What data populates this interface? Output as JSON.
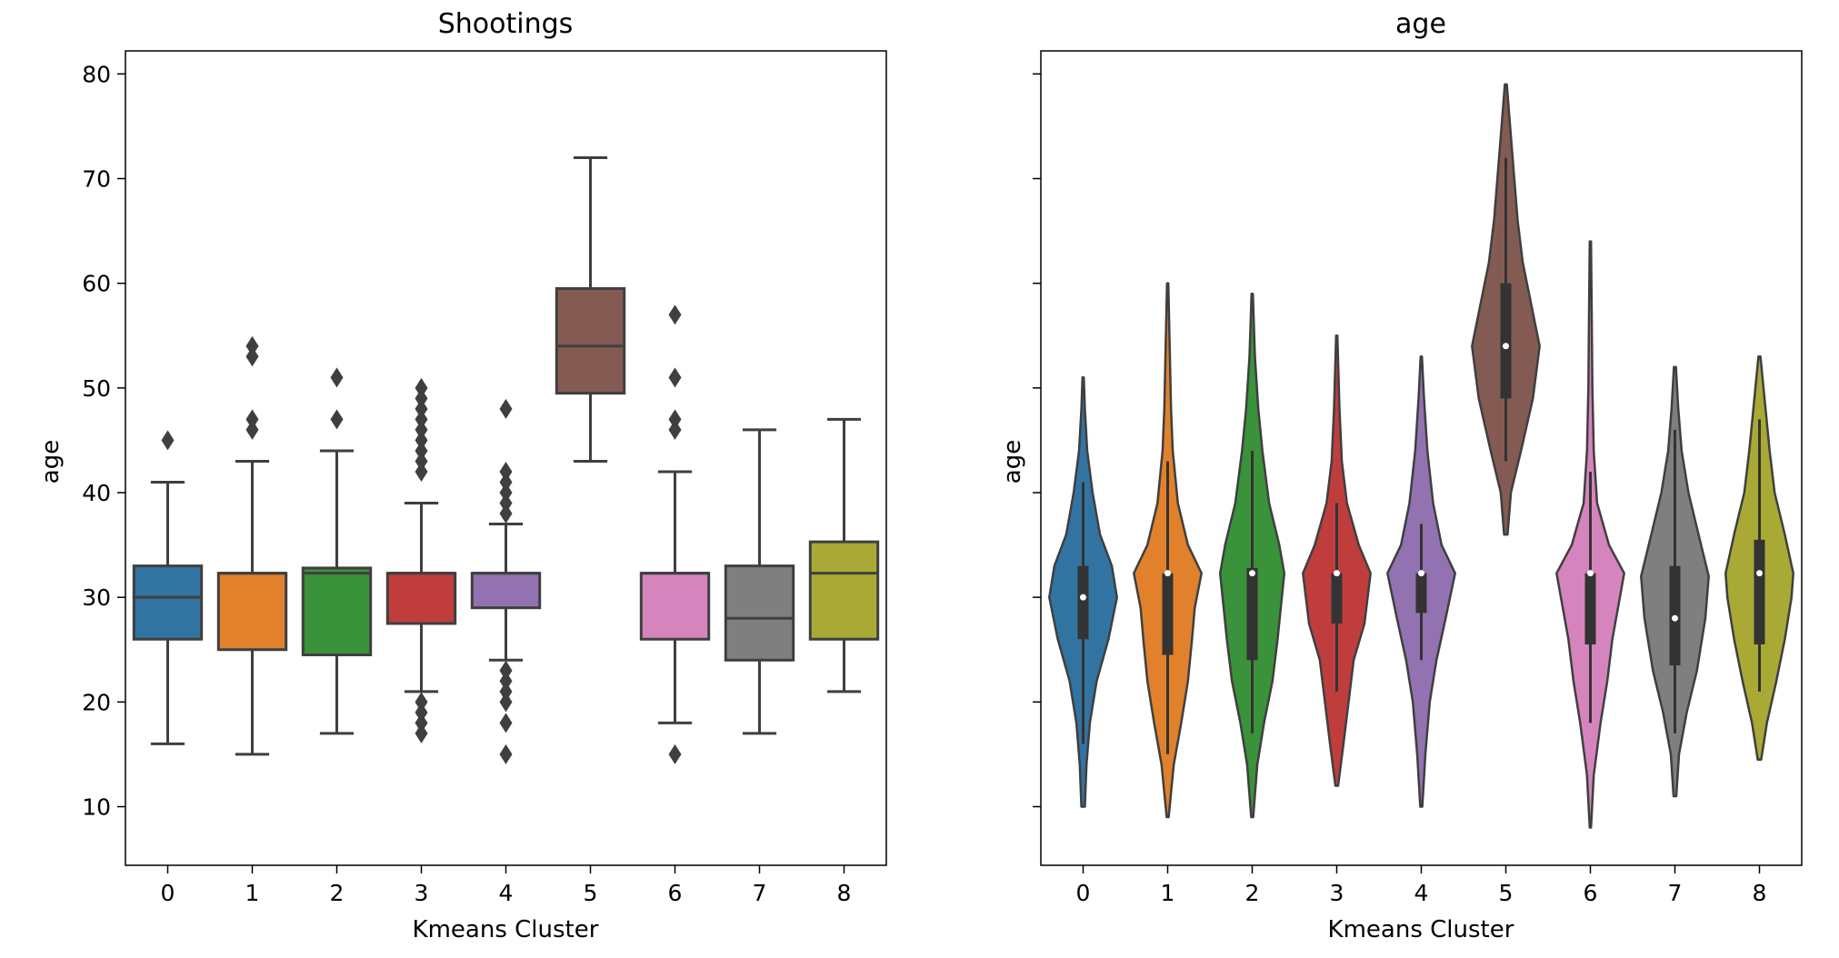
{
  "chart_data": [
    {
      "type": "box",
      "title": "Shootings",
      "xlabel": "Kmeans Cluster",
      "ylabel": "age",
      "categories": [
        "0",
        "1",
        "2",
        "3",
        "4",
        "5",
        "6",
        "7",
        "8"
      ],
      "yticks": [
        10,
        20,
        30,
        40,
        50,
        60,
        70,
        80
      ],
      "ylim": [
        4.4,
        82.2
      ],
      "grid": false,
      "colors": [
        "#3274a1",
        "#e1812c",
        "#3a923a",
        "#c03d3e",
        "#9372b2",
        "#845b53",
        "#d684bd",
        "#7f7f7f",
        "#a9aa35"
      ],
      "boxes": [
        {
          "whisker_low": 16,
          "q1": 26,
          "median": 30,
          "q3": 33,
          "whisker_high": 41,
          "outliers": [
            45
          ]
        },
        {
          "whisker_low": 15,
          "q1": 25,
          "median": 32.3,
          "q3": 32.3,
          "whisker_high": 43,
          "outliers": [
            46,
            47,
            53,
            54
          ]
        },
        {
          "whisker_low": 17,
          "q1": 24.5,
          "median": 32.3,
          "q3": 32.8,
          "whisker_high": 44,
          "outliers": [
            47,
            51
          ]
        },
        {
          "whisker_low": 21,
          "q1": 27.5,
          "median": 32.3,
          "q3": 32.3,
          "whisker_high": 39,
          "outliers": [
            17,
            18,
            19,
            20,
            42,
            43,
            44,
            45,
            46,
            47,
            48,
            49,
            50
          ]
        },
        {
          "whisker_low": 24,
          "q1": 29,
          "median": 32.3,
          "q3": 32.3,
          "whisker_high": 37,
          "outliers": [
            15,
            18,
            20,
            21,
            22,
            23,
            38,
            39,
            40,
            41,
            42,
            48
          ]
        },
        {
          "whisker_low": 43,
          "q1": 49.5,
          "median": 54,
          "q3": 59.5,
          "whisker_high": 72,
          "outliers": []
        },
        {
          "whisker_low": 18,
          "q1": 26,
          "median": 32.3,
          "q3": 32.3,
          "whisker_high": 42,
          "outliers": [
            15,
            46,
            47,
            51,
            57
          ]
        },
        {
          "whisker_low": 17,
          "q1": 24,
          "median": 28,
          "q3": 33,
          "whisker_high": 46,
          "outliers": []
        },
        {
          "whisker_low": 21,
          "q1": 26,
          "median": 32.3,
          "q3": 35.3,
          "whisker_high": 47,
          "outliers": []
        }
      ]
    },
    {
      "type": "violin",
      "title": "age",
      "xlabel": "Kmeans Cluster",
      "ylabel": "age",
      "categories": [
        "0",
        "1",
        "2",
        "3",
        "4",
        "5",
        "6",
        "7",
        "8"
      ],
      "ylim": [
        4.4,
        82.2
      ],
      "grid": false,
      "colors": [
        "#3274a1",
        "#e1812c",
        "#3a923a",
        "#c03d3e",
        "#9372b2",
        "#845b53",
        "#d684bd",
        "#7f7f7f",
        "#a9aa35"
      ],
      "violins": [
        {
          "min": 10,
          "max": 51,
          "q1": 26,
          "median": 30,
          "q3": 33,
          "whisker_low": 16,
          "whisker_high": 41,
          "profile": [
            [
              10,
              0.05
            ],
            [
              14,
              0.1
            ],
            [
              18,
              0.2
            ],
            [
              22,
              0.4
            ],
            [
              26,
              0.75
            ],
            [
              30,
              1.0
            ],
            [
              33,
              0.85
            ],
            [
              36,
              0.5
            ],
            [
              40,
              0.28
            ],
            [
              44,
              0.12
            ],
            [
              48,
              0.05
            ],
            [
              51,
              0.02
            ]
          ]
        },
        {
          "min": 9,
          "max": 60,
          "q1": 24.5,
          "median": 32.3,
          "q3": 32.3,
          "whisker_low": 15,
          "whisker_high": 43,
          "profile": [
            [
              9,
              0.03
            ],
            [
              14,
              0.18
            ],
            [
              18,
              0.4
            ],
            [
              22,
              0.6
            ],
            [
              26,
              0.72
            ],
            [
              29,
              0.8
            ],
            [
              32.3,
              1.0
            ],
            [
              35,
              0.6
            ],
            [
              39,
              0.3
            ],
            [
              44,
              0.15
            ],
            [
              48,
              0.1
            ],
            [
              54,
              0.06
            ],
            [
              60,
              0.02
            ]
          ]
        },
        {
          "min": 9,
          "max": 59,
          "q1": 24,
          "median": 32.3,
          "q3": 32.8,
          "whisker_low": 17,
          "whisker_high": 44,
          "profile": [
            [
              9,
              0.03
            ],
            [
              14,
              0.15
            ],
            [
              18,
              0.35
            ],
            [
              22,
              0.6
            ],
            [
              26,
              0.75
            ],
            [
              32.3,
              0.95
            ],
            [
              35,
              0.8
            ],
            [
              39,
              0.5
            ],
            [
              44,
              0.3
            ],
            [
              48,
              0.18
            ],
            [
              53,
              0.08
            ],
            [
              59,
              0.02
            ]
          ]
        },
        {
          "min": 12,
          "max": 55,
          "q1": 27.5,
          "median": 32.3,
          "q3": 32.3,
          "whisker_low": 21,
          "whisker_high": 39,
          "profile": [
            [
              12,
              0.04
            ],
            [
              16,
              0.2
            ],
            [
              20,
              0.35
            ],
            [
              24,
              0.5
            ],
            [
              27.5,
              0.82
            ],
            [
              32.3,
              1.0
            ],
            [
              35,
              0.65
            ],
            [
              39,
              0.3
            ],
            [
              43,
              0.15
            ],
            [
              48,
              0.08
            ],
            [
              55,
              0.02
            ]
          ]
        },
        {
          "min": 10,
          "max": 53,
          "q1": 28.5,
          "median": 32.3,
          "q3": 32.3,
          "whisker_low": 24,
          "whisker_high": 37,
          "profile": [
            [
              10,
              0.03
            ],
            [
              15,
              0.12
            ],
            [
              20,
              0.25
            ],
            [
              24,
              0.45
            ],
            [
              28,
              0.72
            ],
            [
              32.3,
              1.0
            ],
            [
              35,
              0.6
            ],
            [
              39,
              0.35
            ],
            [
              44,
              0.18
            ],
            [
              49,
              0.08
            ],
            [
              53,
              0.02
            ]
          ]
        },
        {
          "min": 36,
          "max": 79,
          "q1": 49,
          "median": 54,
          "q3": 60,
          "whisker_low": 43,
          "whisker_high": 72,
          "profile": [
            [
              36,
              0.05
            ],
            [
              40,
              0.15
            ],
            [
              44,
              0.45
            ],
            [
              49,
              0.8
            ],
            [
              54,
              1.0
            ],
            [
              58,
              0.75
            ],
            [
              62,
              0.5
            ],
            [
              66,
              0.35
            ],
            [
              70,
              0.25
            ],
            [
              74,
              0.15
            ],
            [
              79,
              0.03
            ]
          ]
        },
        {
          "min": 8,
          "max": 64,
          "q1": 25.5,
          "median": 32.3,
          "q3": 32.3,
          "whisker_low": 18,
          "whisker_high": 42,
          "profile": [
            [
              8,
              0.02
            ],
            [
              13,
              0.1
            ],
            [
              18,
              0.3
            ],
            [
              22,
              0.5
            ],
            [
              26,
              0.65
            ],
            [
              32.3,
              1.0
            ],
            [
              35,
              0.55
            ],
            [
              39,
              0.2
            ],
            [
              44,
              0.1
            ],
            [
              50,
              0.06
            ],
            [
              57,
              0.04
            ],
            [
              64,
              0.02
            ]
          ]
        },
        {
          "min": 11,
          "max": 52,
          "q1": 23.5,
          "median": 28,
          "q3": 33,
          "whisker_low": 17,
          "whisker_high": 46,
          "profile": [
            [
              11,
              0.04
            ],
            [
              15,
              0.12
            ],
            [
              19,
              0.35
            ],
            [
              23,
              0.65
            ],
            [
              28,
              0.9
            ],
            [
              32,
              1.0
            ],
            [
              36,
              0.7
            ],
            [
              40,
              0.4
            ],
            [
              44,
              0.2
            ],
            [
              48,
              0.1
            ],
            [
              52,
              0.03
            ]
          ]
        },
        {
          "min": 14.5,
          "max": 53,
          "q1": 25.5,
          "median": 32.3,
          "q3": 35.5,
          "whisker_low": 21,
          "whisker_high": 47,
          "profile": [
            [
              14.5,
              0.05
            ],
            [
              18,
              0.22
            ],
            [
              22,
              0.5
            ],
            [
              26,
              0.75
            ],
            [
              30,
              0.95
            ],
            [
              32.3,
              1.0
            ],
            [
              36,
              0.75
            ],
            [
              40,
              0.45
            ],
            [
              44,
              0.3
            ],
            [
              48,
              0.18
            ],
            [
              53,
              0.03
            ]
          ]
        }
      ]
    }
  ]
}
